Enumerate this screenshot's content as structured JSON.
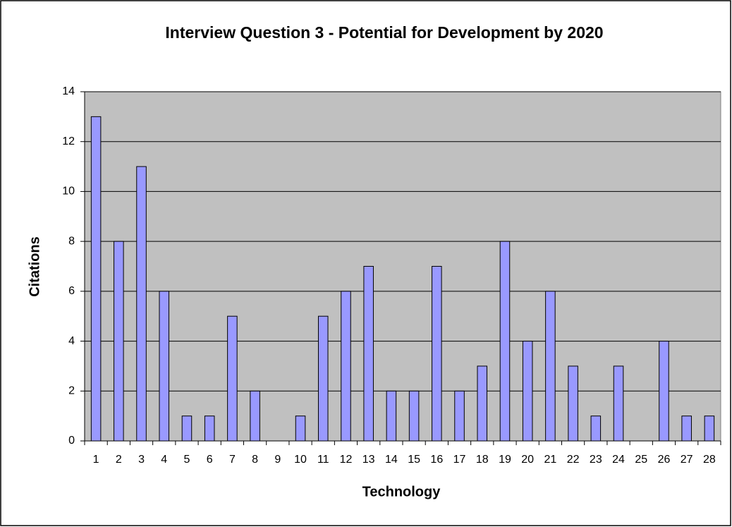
{
  "chart_data": {
    "type": "bar",
    "title": "Interview Question 3 - Potential for Development by 2020",
    "x_label": "Technology",
    "y_label": "Citations",
    "categories": [
      "1",
      "2",
      "3",
      "4",
      "5",
      "6",
      "7",
      "8",
      "9",
      "10",
      "11",
      "12",
      "13",
      "14",
      "15",
      "16",
      "17",
      "18",
      "19",
      "20",
      "21",
      "22",
      "23",
      "24",
      "25",
      "26",
      "27",
      "28"
    ],
    "values": [
      13,
      8,
      11,
      6,
      1,
      1,
      5,
      2,
      0,
      1,
      5,
      6,
      7,
      2,
      2,
      7,
      2,
      3,
      8,
      4,
      6,
      3,
      1,
      3,
      0,
      4,
      1,
      1
    ],
    "color": "#9999ff",
    "ylim": [
      0,
      14
    ],
    "yticks": [
      0,
      2,
      4,
      6,
      8,
      10,
      12,
      14
    ],
    "grid": true
  }
}
